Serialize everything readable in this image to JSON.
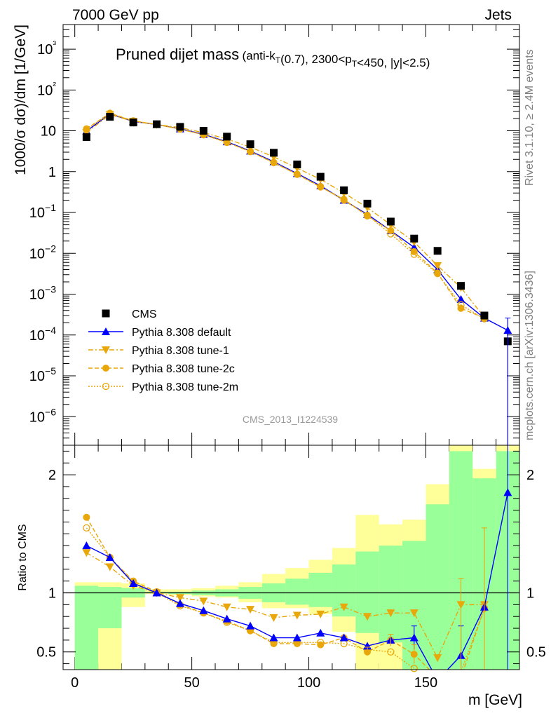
{
  "header": {
    "left": "7000 GeV pp",
    "right": "Jets"
  },
  "side_labels": {
    "rivet": "Rivet 3.1.10, ≥ 2.4M events",
    "mcplots": "mcplots.cern.ch [arXiv:1306.3436]"
  },
  "analysis_id": "CMS_2013_I1224539",
  "chart_data": [
    {
      "type": "scatter",
      "title_main": "Pruned dijet mass",
      "title_sub": "(anti-k_T(0.7), 2300<p_T<450, |y|<2.5)",
      "ylabel": "1000/σ dσ)/dm [1/GeV]",
      "yscale": "log",
      "ylim": [
        2e-07,
        4000
      ],
      "xlim": [
        -5,
        190
      ],
      "yticks": [
        "10−6",
        "10−5",
        "10−4",
        "10−3",
        "10−2",
        "10−1",
        "1",
        "10",
        "10²",
        "10³"
      ],
      "x": [
        5,
        15,
        25,
        35,
        45,
        55,
        65,
        75,
        85,
        95,
        105,
        115,
        125,
        135,
        145,
        155,
        165,
        175,
        185
      ],
      "series": [
        {
          "name": "CMS",
          "color": "#000000",
          "marker": "square",
          "values": [
            7,
            22,
            16,
            14.5,
            12.5,
            10,
            7.2,
            4.7,
            2.9,
            1.5,
            0.75,
            0.35,
            0.165,
            0.06,
            0.023,
            0.0115,
            0.0016,
            0.0003,
            7e-05
          ]
        },
        {
          "name": "Pythia 8.308 default",
          "color": "#0000ff",
          "marker": "triangle-up",
          "line": "solid",
          "values": [
            9.8,
            26,
            17,
            14.3,
            11.2,
            8.2,
            5.4,
            3.2,
            1.75,
            0.9,
            0.45,
            0.2,
            0.09,
            0.036,
            0.014,
            0.004,
            0.00075,
            0.00026,
            0.00013
          ]
        },
        {
          "name": "Pythia 8.308 tune-1",
          "color": "#e8a70a",
          "marker": "triangle-down",
          "line": "dashdot",
          "values": [
            9.0,
            25,
            17,
            14.2,
            12.0,
            9.0,
            6.3,
            4.0,
            2.3,
            1.22,
            0.65,
            0.3,
            0.132,
            0.05,
            0.019,
            0.005,
            0.00145,
            0.00027,
            null
          ]
        },
        {
          "name": "Pythia 8.308 tune-2c",
          "color": "#e8a70a",
          "marker": "circle",
          "line": "dashed",
          "values": [
            11.2,
            27,
            17.5,
            14.3,
            11.0,
            8.0,
            5.2,
            3.1,
            1.65,
            0.86,
            0.42,
            0.21,
            0.082,
            0.036,
            0.011,
            0.0033,
            0.00045,
            0.00026,
            null
          ]
        },
        {
          "name": "Pythia 8.308 tune-2m",
          "color": "#e8a70a",
          "marker": "open-circle",
          "line": "dotted",
          "values": [
            10.8,
            26.5,
            17.5,
            14.3,
            11.0,
            8.0,
            5.2,
            3.1,
            1.68,
            0.86,
            0.43,
            0.2,
            0.085,
            0.03,
            0.0095,
            0.0032,
            0.00055,
            0.00025,
            null
          ]
        }
      ]
    },
    {
      "type": "scatter",
      "ylabel": "Ratio to CMS",
      "xlabel": "m [GeV]",
      "ylim": [
        0.35,
        2.25
      ],
      "xlim": [
        -5,
        190
      ],
      "yticks": [
        "0.5",
        "1",
        "2"
      ],
      "xticks": [
        "0",
        "50",
        "100",
        "150"
      ],
      "reference": 1,
      "band_yellow": {
        "color": "#ffff99",
        "lo": [
          0.35,
          0.35,
          0.88,
          0.99,
          0.98,
          0.97,
          0.96,
          0.92,
          0.87,
          0.87,
          0.82,
          0.67,
          0.35,
          0.35,
          0.35,
          0.35,
          0.35,
          0.35,
          0.35
        ],
        "hi": [
          1.09,
          1.09,
          1.08,
          1.03,
          1.03,
          1.04,
          1.06,
          1.09,
          1.16,
          1.21,
          1.28,
          1.38,
          1.66,
          1.58,
          1.62,
          1.92,
          2.25,
          2.05,
          2.25
        ]
      },
      "band_green": {
        "color": "#99ff99",
        "lo": [
          0.35,
          0.7,
          0.96,
          1.0,
          0.99,
          0.98,
          0.97,
          0.95,
          0.92,
          0.9,
          0.88,
          0.8,
          0.66,
          0.58,
          0.35,
          0.35,
          0.35,
          0.35,
          0.35
        ],
        "hi": [
          1.06,
          1.05,
          1.04,
          1.01,
          1.01,
          1.02,
          1.03,
          1.05,
          1.08,
          1.12,
          1.17,
          1.24,
          1.35,
          1.4,
          1.44,
          1.75,
          2.2,
          1.97,
          2.2
        ]
      },
      "series": [
        {
          "name": "Pythia 8.308 default",
          "color": "#0000ff",
          "values": [
            1.4,
            1.3,
            1.08,
            1.0,
            0.91,
            0.85,
            0.78,
            0.72,
            0.62,
            0.62,
            0.66,
            0.62,
            0.55,
            0.6,
            0.62,
            0.26,
            0.47,
            0.88,
            1.85
          ]
        },
        {
          "name": "Pythia 8.308 tune-1",
          "color": "#e8a70a",
          "values": [
            1.34,
            1.22,
            1.06,
            1.0,
            0.96,
            0.93,
            0.88,
            0.86,
            0.79,
            0.81,
            0.82,
            0.88,
            0.8,
            0.83,
            0.83,
            0.45,
            0.9,
            0.9,
            null
          ]
        },
        {
          "name": "Pythia 8.308 tune-2c",
          "color": "#e8a70a",
          "values": [
            1.64,
            1.3,
            1.1,
            1.01,
            0.9,
            0.83,
            0.76,
            0.68,
            0.57,
            0.57,
            0.56,
            0.62,
            0.5,
            0.6,
            0.48,
            0.28,
            0.28,
            0.87,
            null
          ]
        },
        {
          "name": "Pythia 8.308 tune-2m",
          "color": "#e8a70a",
          "values": [
            1.55,
            1.3,
            1.09,
            1.0,
            0.89,
            0.83,
            0.75,
            0.68,
            0.58,
            0.58,
            0.58,
            0.57,
            0.52,
            0.5,
            0.36,
            0.27,
            0.33,
            0.87,
            null
          ]
        }
      ]
    }
  ]
}
